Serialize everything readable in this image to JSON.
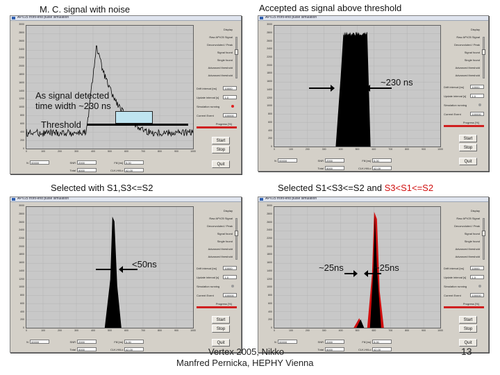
{
  "captions": {
    "top_left": "M. C. signal with noise",
    "top_right": "Accepted as signal above threshold",
    "bottom_left": "Selected with S1,S3<=S2",
    "bottom_right_black": "Selected S1<S3<=S2 and ",
    "bottom_right_red": "S3<S1<=S2"
  },
  "annotations": {
    "signal_detected": "As signal detected",
    "time_width": "time width ~230 ns",
    "threshold": "Threshold",
    "width_230": "~230 ns",
    "width_50": "<50ns",
    "width_25_a": "~25ns",
    "width_25_b": "~25ns"
  },
  "footer": {
    "line1": "Vertex 2005, Nikko",
    "line2": "Manfred Pernicka, HEPHY Vienna",
    "page_number": "13"
  },
  "app": {
    "window_title": "APV25 front-end pulse simulation",
    "start_label": "Start",
    "stop_label": "Stop",
    "quit_label": "Quit",
    "side_labels": [
      "Display",
      "Raw APV25 Signal",
      "Deconvoluted / Peak",
      "Signal found",
      "Single found",
      "Advanced threshold",
      "Advanced threshold"
    ],
    "field_labels": {
      "drift": "Drift interval [ns]",
      "update": "Update interval [s]",
      "sim": "Simulation running",
      "current": "Current Event",
      "progress": "Progress [%]",
      "n": "N",
      "snr": "SNR",
      "fill": "Fill [ns]",
      "total": "Total",
      "clk": "CLK-Hi/Lo"
    },
    "field_values": {
      "drift": "10000",
      "update": "1.0",
      "current": "100000",
      "n": "00000",
      "snr": "2000",
      "fill": "5.00",
      "total": "5000",
      "clk": "42.00"
    },
    "y_ticks": [
      "3000",
      "2800",
      "2600",
      "2400",
      "2200",
      "2000",
      "1800",
      "1600",
      "1400",
      "1200",
      "1000",
      "800",
      "600",
      "400",
      "200",
      "0"
    ],
    "x_ticks": [
      "0",
      "100",
      "200",
      "300",
      "400",
      "500",
      "600",
      "700",
      "800",
      "900",
      "1000"
    ],
    "colors": {
      "window_bg": "#d4d0c8",
      "plot_bg": "#c8c8c8",
      "red_signal": "#d01010",
      "indicator_red": "#e02020"
    }
  }
}
